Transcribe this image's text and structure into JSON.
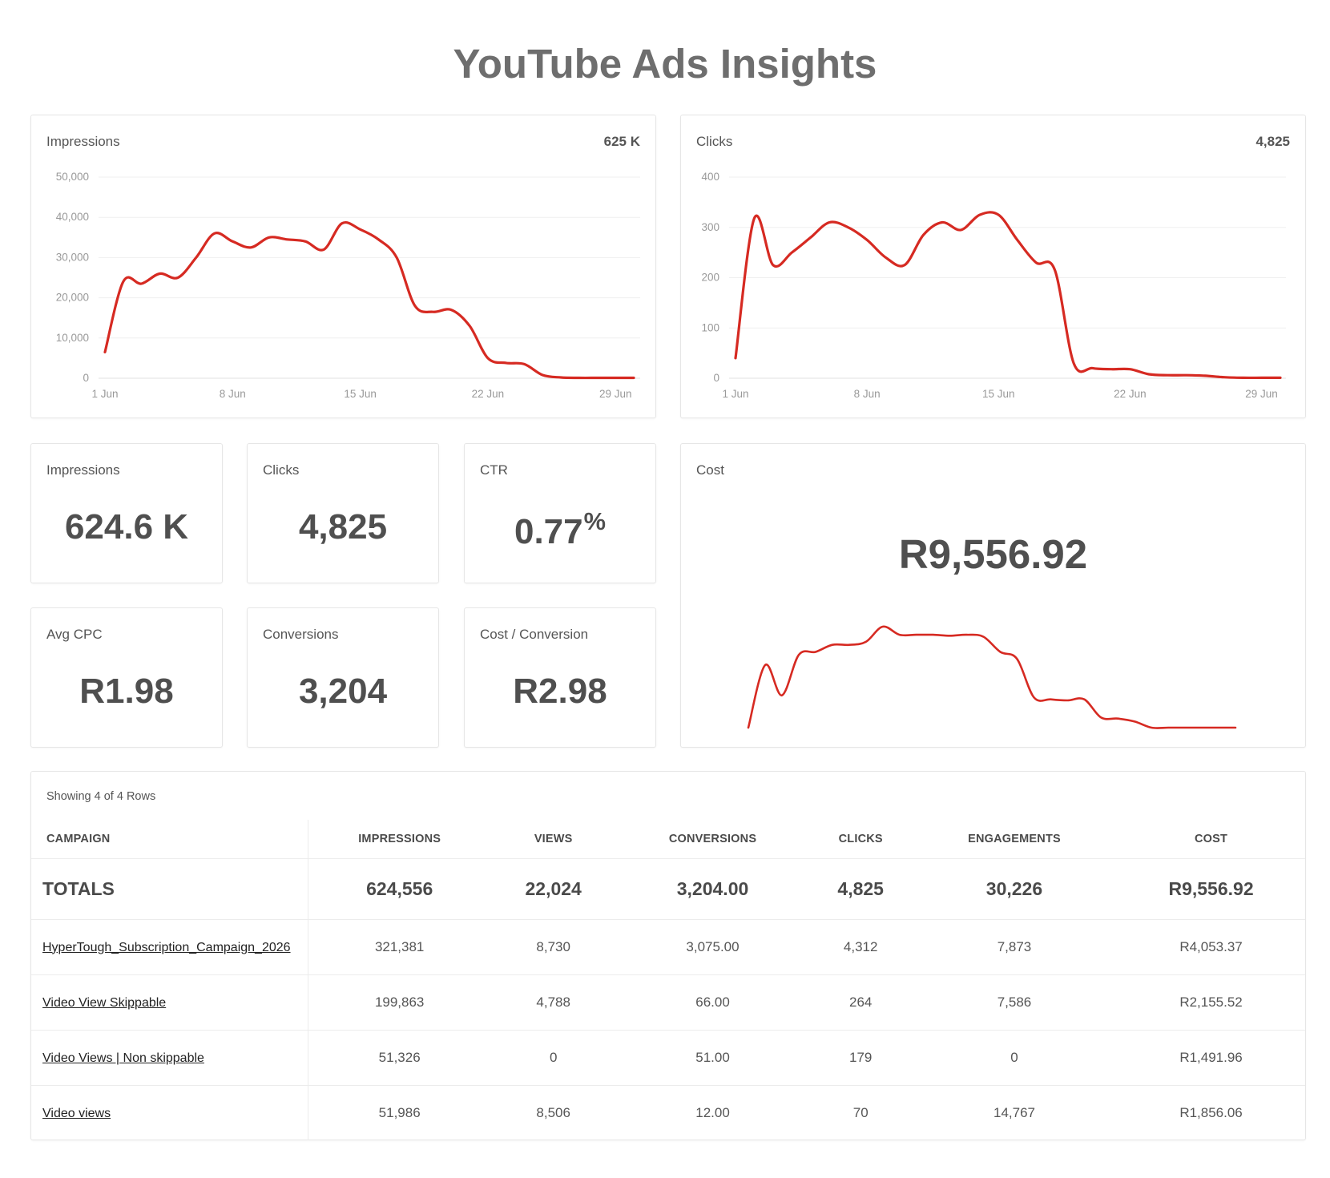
{
  "title": "YouTube Ads Insights",
  "accent_color": "#d62a22",
  "impressions_chart": {
    "label": "Impressions",
    "total": "625 K"
  },
  "clicks_chart": {
    "label": "Clicks",
    "total": "4,825"
  },
  "kpis": {
    "impressions": {
      "label": "Impressions",
      "value": "624.6 K"
    },
    "clicks": {
      "label": "Clicks",
      "value": "4,825"
    },
    "ctr": {
      "label": "CTR",
      "value": "0.77",
      "unit": "%"
    },
    "avg_cpc": {
      "label": "Avg CPC",
      "value": "R1.98"
    },
    "conversions": {
      "label": "Conversions",
      "value": "3,204"
    },
    "cost_per_conversion": {
      "label": "Cost / Conversion",
      "value": "R2.98"
    }
  },
  "cost_card": {
    "label": "Cost",
    "value": "R9,556.92"
  },
  "chart_data": [
    {
      "type": "line",
      "ylabel": "Impressions",
      "ylim": [
        0,
        50000
      ],
      "yticks": [
        "0",
        "10,000",
        "20,000",
        "30,000",
        "40,000",
        "50,000"
      ],
      "xticks": [
        "1 Jun",
        "8 Jun",
        "15 Jun",
        "22 Jun",
        "29 Jun"
      ],
      "x": [
        1,
        2,
        3,
        4,
        5,
        6,
        7,
        8,
        9,
        10,
        11,
        12,
        13,
        14,
        15,
        16,
        17,
        18,
        19,
        20,
        21,
        22,
        23,
        24,
        25,
        26,
        27,
        28,
        29,
        30
      ],
      "series": [
        {
          "values": [
            6500,
            24000,
            23500,
            26000,
            25000,
            30000,
            36000,
            34000,
            32500,
            35000,
            34500,
            34000,
            32000,
            38500,
            37000,
            34500,
            30000,
            18000,
            16500,
            17000,
            13000,
            5000,
            3800,
            3500,
            800,
            200,
            100,
            100,
            100,
            100
          ]
        }
      ]
    },
    {
      "type": "line",
      "ylabel": "Clicks",
      "ylim": [
        0,
        400
      ],
      "yticks": [
        "0",
        "100",
        "200",
        "300",
        "400"
      ],
      "xticks": [
        "1 Jun",
        "8 Jun",
        "15 Jun",
        "22 Jun",
        "29 Jun"
      ],
      "x": [
        1,
        2,
        3,
        4,
        5,
        6,
        7,
        8,
        9,
        10,
        11,
        12,
        13,
        14,
        15,
        16,
        17,
        18,
        19,
        20,
        21,
        22,
        23,
        24,
        25,
        26,
        27,
        28,
        29,
        30
      ],
      "series": [
        {
          "values": [
            40,
            318,
            225,
            250,
            280,
            310,
            300,
            275,
            240,
            225,
            285,
            310,
            295,
            325,
            325,
            275,
            230,
            215,
            30,
            20,
            18,
            18,
            8,
            6,
            6,
            5,
            2,
            1,
            1,
            1
          ]
        }
      ]
    },
    {
      "type": "line",
      "ylabel": "Cost",
      "x": [
        1,
        2,
        3,
        4,
        5,
        6,
        7,
        8,
        9,
        10,
        11,
        12,
        13,
        14,
        15,
        16,
        17,
        18,
        19,
        20,
        21,
        22,
        23,
        24,
        25,
        26,
        27,
        28,
        29,
        30
      ],
      "series": [
        {
          "values": [
            0,
            62,
            32,
            72,
            75,
            82,
            82,
            85,
            100,
            92,
            92,
            92,
            91,
            92,
            90,
            75,
            68,
            30,
            28,
            27,
            28,
            10,
            9,
            6,
            0,
            0,
            0,
            0,
            0,
            0
          ]
        }
      ]
    }
  ],
  "table": {
    "caption": "Showing 4 of 4 Rows",
    "columns": [
      "CAMPAIGN",
      "IMPRESSIONS",
      "VIEWS",
      "CONVERSIONS",
      "CLICKS",
      "ENGAGEMENTS",
      "COST"
    ],
    "totals": [
      "TOTALS",
      "624,556",
      "22,024",
      "3,204.00",
      "4,825",
      "30,226",
      "R9,556.92"
    ],
    "rows": [
      [
        "HyperTough_Subscription_Campaign_2026",
        "321,381",
        "8,730",
        "3,075.00",
        "4,312",
        "7,873",
        "R4,053.37"
      ],
      [
        "Video View Skippable",
        "199,863",
        "4,788",
        "66.00",
        "264",
        "7,586",
        "R2,155.52"
      ],
      [
        "Video Views | Non skippable",
        "51,326",
        "0",
        "51.00",
        "179",
        "0",
        "R1,491.96"
      ],
      [
        "Video views",
        "51,986",
        "8,506",
        "12.00",
        "70",
        "14,767",
        "R1,856.06"
      ]
    ]
  }
}
